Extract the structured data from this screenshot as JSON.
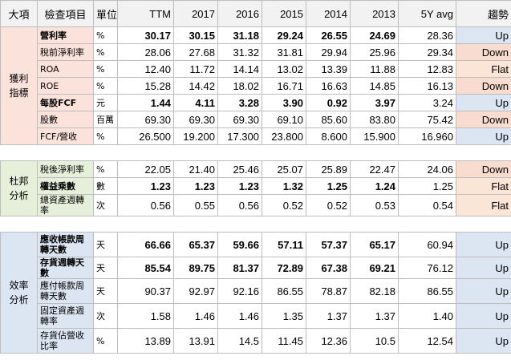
{
  "header": {
    "category": "大項",
    "item": "檢查項目",
    "unit": "單位",
    "cols": [
      "TTM",
      "2017",
      "2016",
      "2015",
      "2014",
      "2013"
    ],
    "avg": "5Y avg",
    "trend": "趨勢"
  },
  "colors": {
    "profit": "#fbe3dc",
    "dupont": "#e5efda",
    "efficiency": "#dce6f2",
    "up": "#dce6f2",
    "down": "#f8dcd0",
    "flat": "#fbe5d6"
  },
  "sections": [
    {
      "name": "獲利指標",
      "rows": [
        {
          "item": "營利率",
          "unit": "%",
          "vals": [
            "30.17",
            "30.15",
            "31.18",
            "29.24",
            "26.55",
            "24.69"
          ],
          "avg": "28.36",
          "trend": "Up",
          "bold": true
        },
        {
          "item": "稅前淨利率",
          "unit": "%",
          "vals": [
            "28.06",
            "27.68",
            "31.32",
            "31.81",
            "29.94",
            "25.96"
          ],
          "avg": "29.34",
          "trend": "Down",
          "bold": false
        },
        {
          "item": "ROA",
          "unit": "%",
          "vals": [
            "12.40",
            "11.72",
            "14.14",
            "13.02",
            "13.39",
            "11.88"
          ],
          "avg": "12.83",
          "trend": "Flat",
          "bold": false
        },
        {
          "item": "ROE",
          "unit": "%",
          "vals": [
            "15.28",
            "14.42",
            "18.02",
            "16.71",
            "16.63",
            "14.85"
          ],
          "avg": "16.13",
          "trend": "Down",
          "bold": false
        },
        {
          "item": "每股FCF",
          "unit": "元",
          "vals": [
            "1.44",
            "4.11",
            "3.28",
            "3.90",
            "0.92",
            "3.97"
          ],
          "avg": "3.24",
          "trend": "Up",
          "bold": true
        },
        {
          "item": "股數",
          "unit": "百萬",
          "vals": [
            "69.30",
            "69.30",
            "69.30",
            "69.10",
            "85.60",
            "83.80"
          ],
          "avg": "75.42",
          "trend": "Down",
          "bold": false
        },
        {
          "item": "FCF/營收",
          "unit": "%",
          "vals": [
            "26.500",
            "19.200",
            "17.300",
            "23.800",
            "8.600",
            "15.900"
          ],
          "avg": "16.960",
          "trend": "Up",
          "bold": false
        }
      ]
    },
    {
      "name": "杜邦分析",
      "rows": [
        {
          "item": "稅後淨利率",
          "unit": "%",
          "vals": [
            "22.05",
            "21.40",
            "25.46",
            "25.07",
            "25.89",
            "22.47"
          ],
          "avg": "24.06",
          "trend": "Down",
          "bold": false
        },
        {
          "item": "權益乘數",
          "unit": "數",
          "vals": [
            "1.23",
            "1.23",
            "1.23",
            "1.32",
            "1.25",
            "1.24"
          ],
          "avg": "1.25",
          "trend": "Flat",
          "bold": true
        },
        {
          "item": "總資產週轉率",
          "unit": "次",
          "vals": [
            "0.56",
            "0.55",
            "0.56",
            "0.52",
            "0.52",
            "0.53"
          ],
          "avg": "0.54",
          "trend": "Flat",
          "bold": false
        }
      ]
    },
    {
      "name": "效率分析",
      "rows": [
        {
          "item": "應收帳款周轉天數",
          "unit": "天",
          "vals": [
            "66.66",
            "65.37",
            "59.66",
            "57.11",
            "57.37",
            "65.17"
          ],
          "avg": "60.94",
          "trend": "Up",
          "bold": true
        },
        {
          "item": "存貨週轉天數",
          "unit": "天",
          "vals": [
            "85.54",
            "89.75",
            "81.37",
            "72.89",
            "67.38",
            "69.21"
          ],
          "avg": "76.12",
          "trend": "Up",
          "bold": true
        },
        {
          "item": "應付帳款周轉天數",
          "unit": "天",
          "vals": [
            "90.37",
            "92.97",
            "92.16",
            "86.55",
            "78.87",
            "82.18"
          ],
          "avg": "86.55",
          "trend": "Up",
          "bold": false
        },
        {
          "item": "固定資產週轉率",
          "unit": "次",
          "vals": [
            "1.58",
            "1.46",
            "1.46",
            "1.35",
            "1.37",
            "1.37"
          ],
          "avg": "1.40",
          "trend": "Up",
          "bold": false
        },
        {
          "item": "存貨佔營收比率",
          "unit": "%",
          "vals": [
            "13.89",
            "13.91",
            "14.5",
            "11.45",
            "12.36",
            "10.5"
          ],
          "avg": "12.54",
          "trend": "Up",
          "bold": false
        }
      ]
    }
  ]
}
